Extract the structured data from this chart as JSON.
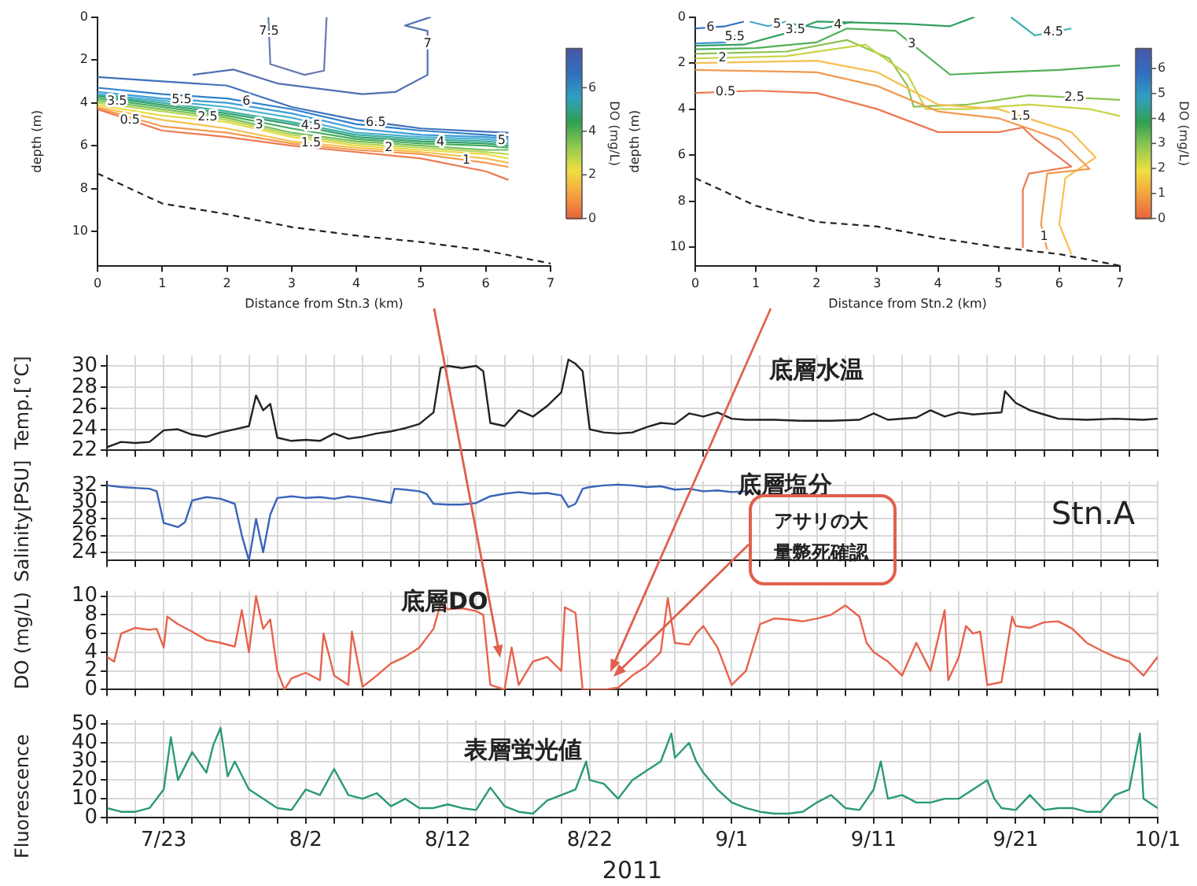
{
  "chart_data": [
    {
      "type": "line",
      "xlabel": "Distance from Stn.3 (km)",
      "ylabel": "depth (m)",
      "clabel": "DO (mg/L)",
      "clim": [
        0,
        7.8
      ],
      "cticks": [
        0,
        2,
        4,
        6
      ],
      "xlim": [
        0,
        7
      ],
      "xticks": [
        0,
        1,
        2,
        3,
        4,
        5,
        6,
        7
      ],
      "ylim": [
        11.6,
        0
      ],
      "yticks": [
        0,
        2,
        4,
        6,
        8,
        10
      ],
      "marker": "none",
      "series": [
        {
          "name": "0.5",
          "color": "#ec7a52",
          "x": [
            0,
            1,
            2,
            3,
            4,
            5,
            6,
            6.35
          ],
          "values": [
            4.3,
            5.3,
            5.6,
            6.0,
            6.3,
            6.6,
            7.2,
            7.6
          ]
        },
        {
          "name": "1",
          "color": "#f29a50",
          "x": [
            0,
            1,
            2,
            3,
            4,
            5,
            6,
            6.35
          ],
          "values": [
            4.25,
            5.1,
            5.4,
            5.9,
            6.2,
            6.4,
            6.8,
            7.0
          ]
        },
        {
          "name": "1.5",
          "color": "#f6c050",
          "x": [
            0,
            1,
            2,
            3,
            4,
            5,
            6,
            6.35
          ],
          "values": [
            4.2,
            4.8,
            5.2,
            5.8,
            6.1,
            6.3,
            6.6,
            6.8
          ]
        },
        {
          "name": "2",
          "color": "#e8dc48",
          "x": [
            0,
            1,
            2,
            3,
            4,
            5,
            6,
            6.35
          ],
          "values": [
            4.1,
            4.6,
            4.9,
            5.6,
            6.0,
            6.2,
            6.4,
            6.6
          ]
        },
        {
          "name": "2.5",
          "color": "#b8d458",
          "x": [
            0,
            1,
            2,
            3,
            4,
            5,
            6,
            6.35
          ],
          "values": [
            4.0,
            4.4,
            4.8,
            5.5,
            5.9,
            6.1,
            6.3,
            6.4
          ]
        },
        {
          "name": "3",
          "color": "#74c058",
          "x": [
            0,
            1,
            2,
            3,
            4,
            5,
            6,
            6.35
          ],
          "values": [
            3.9,
            4.3,
            4.7,
            5.4,
            5.8,
            6.0,
            6.2,
            6.2
          ]
        },
        {
          "name": "3.5",
          "color": "#44ac5c",
          "x": [
            0,
            1,
            2,
            3,
            4,
            5,
            6,
            6.35
          ],
          "values": [
            3.8,
            4.2,
            4.6,
            5.2,
            5.7,
            5.9,
            6.0,
            6.1
          ]
        },
        {
          "name": "4",
          "color": "#34a070",
          "x": [
            0,
            1,
            2,
            3,
            4,
            5,
            6,
            6.35
          ],
          "values": [
            3.7,
            4.1,
            4.5,
            5.0,
            5.6,
            5.8,
            5.9,
            6.0
          ]
        },
        {
          "name": "4.5",
          "color": "#3eb0a0",
          "x": [
            0,
            1,
            2,
            3,
            4,
            5,
            6,
            6.35
          ],
          "values": [
            3.65,
            4.0,
            4.4,
            4.9,
            5.5,
            5.7,
            5.8,
            5.9
          ]
        },
        {
          "name": "5",
          "color": "#4cb0d0",
          "x": [
            0,
            1,
            2,
            3,
            4,
            5,
            6,
            6.35
          ],
          "values": [
            3.6,
            3.9,
            4.2,
            4.7,
            5.4,
            5.6,
            5.7,
            5.8
          ]
        },
        {
          "name": "5.5",
          "color": "#3e9ed8",
          "x": [
            0,
            1,
            2,
            3,
            4,
            5,
            6,
            6.35
          ],
          "values": [
            3.5,
            3.8,
            4.0,
            4.5,
            5.2,
            5.5,
            5.6,
            5.7
          ]
        },
        {
          "name": "6",
          "color": "#3080c8",
          "x": [
            0,
            1,
            2,
            3,
            4,
            5,
            6,
            6.35
          ],
          "values": [
            3.3,
            3.6,
            3.8,
            4.3,
            5.0,
            5.3,
            5.5,
            5.6
          ]
        },
        {
          "name": "6.5",
          "color": "#4070b8",
          "x": [
            0,
            1,
            2,
            3,
            4,
            5,
            6,
            6.35
          ],
          "values": [
            2.8,
            3.0,
            3.2,
            4.2,
            4.8,
            5.2,
            5.35,
            5.4
          ]
        },
        {
          "name": "7",
          "color": "#5070b0",
          "x": [
            1.47,
            2.1,
            2.78,
            4.09,
            4.6,
            5.1,
            5.1,
            4.75,
            5.15
          ],
          "values": [
            2.7,
            2.45,
            3.1,
            3.6,
            3.5,
            2.7,
            0.65,
            0.4,
            0
          ]
        },
        {
          "name": "7.5",
          "color": "#6878b0",
          "x": [
            2.64,
            2.67,
            3.2,
            3.5,
            3.54
          ],
          "values": [
            0,
            2.2,
            2.7,
            2.5,
            0
          ]
        },
        {
          "color": "#222222",
          "line_style": "dashed",
          "x": [
            0,
            1,
            2,
            3,
            4,
            5,
            6,
            7
          ],
          "values": [
            7.3,
            8.7,
            9.2,
            9.8,
            10.2,
            10.5,
            10.9,
            11.5
          ]
        }
      ]
    },
    {
      "type": "line",
      "xlabel": "Distance from Stn.2 (km)",
      "ylabel": "depth (m)",
      "clabel": "DO (mg/L)",
      "clim": [
        0,
        6.8
      ],
      "cticks": [
        0,
        1,
        2,
        3,
        4,
        5,
        6
      ],
      "xlim": [
        0,
        7
      ],
      "xticks": [
        0,
        1,
        2,
        3,
        4,
        5,
        6,
        7
      ],
      "ylim": [
        10.8,
        0
      ],
      "yticks": [
        0,
        2,
        4,
        6,
        8,
        10
      ],
      "marker": "none",
      "series": [
        {
          "name": "0.5",
          "color": "#ec7a52",
          "x": [
            0,
            1,
            2,
            3,
            4,
            5,
            5.4,
            5.6,
            6.2,
            5.5,
            5.4,
            5.4
          ],
          "values": [
            3.3,
            3.2,
            3.3,
            4.0,
            5.0,
            5.0,
            4.8,
            5.3,
            6.5,
            6.8,
            7.5,
            10.0
          ]
        },
        {
          "name": "1",
          "color": "#f29a50",
          "x": [
            0,
            2,
            3,
            4,
            5,
            6,
            6.5,
            5.8,
            5.7,
            5.8
          ],
          "values": [
            2.3,
            2.4,
            3.0,
            4.1,
            4.4,
            5.3,
            6.6,
            6.8,
            9.0,
            10.1
          ]
        },
        {
          "name": "1.5",
          "color": "#f6c050",
          "x": [
            0,
            2,
            3,
            4,
            5,
            6.2,
            6.6,
            6.1,
            6.0,
            6.2
          ],
          "values": [
            2.0,
            1.9,
            2.4,
            3.8,
            4.0,
            5.0,
            6.1,
            7.0,
            9.0,
            10.3
          ]
        },
        {
          "name": "2",
          "color": "#c8d448",
          "x": [
            0,
            1.5,
            2.8,
            3.5,
            3.8,
            4.5,
            5.5,
            6.5,
            7
          ],
          "values": [
            1.8,
            1.7,
            1.2,
            2.5,
            4.0,
            4.0,
            3.8,
            4.0,
            4.3
          ]
        },
        {
          "name": "2.5",
          "color": "#8cc450",
          "x": [
            0,
            1.5,
            2.5,
            3.2,
            3.5,
            3.6,
            4.5,
            5.5,
            7
          ],
          "values": [
            1.6,
            1.5,
            1.0,
            1.8,
            3.0,
            3.9,
            3.8,
            3.4,
            3.6
          ]
        },
        {
          "name": "3",
          "color": "#50b058",
          "x": [
            0,
            1,
            2,
            2.5,
            3.3,
            4.2,
            5,
            6,
            7
          ],
          "values": [
            1.4,
            1.35,
            1.1,
            0.5,
            0.6,
            2.5,
            2.4,
            2.3,
            2.1
          ]
        },
        {
          "name": "3.5",
          "color": "#34a060",
          "x": [
            0,
            0.8,
            1.5,
            2,
            3.5,
            4.2,
            4.6
          ],
          "values": [
            1.25,
            1.2,
            0.7,
            0.2,
            0.3,
            0.4,
            0
          ]
        },
        {
          "name": "4",
          "color": "#30a080",
          "x": [
            1.6,
            2.1,
            2.6
          ],
          "values": [
            0.3,
            0.5,
            0.2
          ]
        },
        {
          "name": "4.5",
          "color": "#3cb0b0",
          "x": [
            5.2,
            5.6,
            6.2
          ],
          "values": [
            0,
            0.8,
            0.5
          ]
        },
        {
          "name": "5",
          "color": "#44a8d0",
          "x": [
            0.9,
            1.2,
            1.5
          ],
          "values": [
            0.2,
            0.4,
            0.2
          ]
        },
        {
          "name": "5.5",
          "color": "#3890d0",
          "x": [
            0,
            0.5,
            0.8
          ],
          "values": [
            1.15,
            1.1,
            0.6
          ]
        },
        {
          "name": "6",
          "color": "#3070c0",
          "x": [
            0,
            0.5,
            0.8
          ],
          "values": [
            0.5,
            0.4,
            0.2
          ]
        },
        {
          "color": "#222222",
          "line_style": "dashed",
          "x": [
            0,
            1,
            2,
            3,
            4,
            5,
            6,
            7
          ],
          "values": [
            7.0,
            8.2,
            8.9,
            9.1,
            9.6,
            10.0,
            10.3,
            10.8
          ]
        }
      ]
    },
    {
      "type": "line",
      "ylabel": "Temp.[°C]",
      "xlim": [
        "2011-07-19",
        "2011-10-01"
      ],
      "ylim": [
        22,
        31
      ],
      "yticks": [
        22,
        24,
        26,
        28,
        30
      ],
      "grid": true,
      "tick_labels": "y",
      "marker": "none",
      "xticks": [
        {
          "value": "2011-07-19",
          "label": null
        },
        {
          "value": "2011-07-21",
          "label": null
        },
        {
          "value": "2011-07-23",
          "label": null
        },
        {
          "value": "2011-07-25",
          "label": null
        },
        {
          "value": "2011-07-27",
          "label": null
        },
        {
          "value": "2011-07-29",
          "label": null
        },
        {
          "value": "2011-07-31",
          "label": null
        },
        {
          "value": "2011-08-02",
          "label": null
        },
        {
          "value": "2011-08-04",
          "label": null
        },
        {
          "value": "2011-08-06",
          "label": null
        },
        {
          "value": "2011-08-08",
          "label": null
        },
        {
          "value": "2011-08-10",
          "label": null
        },
        {
          "value": "2011-08-12",
          "label": null
        },
        {
          "value": "2011-08-14",
          "label": null
        },
        {
          "value": "2011-08-16",
          "label": null
        },
        {
          "value": "2011-08-18",
          "label": null
        },
        {
          "value": "2011-08-20",
          "label": null
        },
        {
          "value": "2011-08-22",
          "label": null
        },
        {
          "value": "2011-08-24",
          "label": null
        },
        {
          "value": "2011-08-26",
          "label": null
        },
        {
          "value": "2011-08-28",
          "label": null
        },
        {
          "value": "2011-08-30",
          "label": null
        },
        {
          "value": "2011-09-01",
          "label": null
        },
        {
          "value": "2011-09-03",
          "label": null
        },
        {
          "value": "2011-09-05",
          "label": null
        },
        {
          "value": "2011-09-07",
          "label": null
        },
        {
          "value": "2011-09-09",
          "label": null
        },
        {
          "value": "2011-09-11",
          "label": null
        },
        {
          "value": "2011-09-13",
          "label": null
        },
        {
          "value": "2011-09-15",
          "label": null
        },
        {
          "value": "2011-09-17",
          "label": null
        },
        {
          "value": "2011-09-19",
          "label": null
        },
        {
          "value": "2011-09-21",
          "label": null
        },
        {
          "value": "2011-09-23",
          "label": null
        },
        {
          "value": "2011-09-25",
          "label": null
        },
        {
          "value": "2011-09-27",
          "label": null
        },
        {
          "value": "2011-09-29",
          "label": null
        },
        {
          "value": "2011-10-01",
          "label": null
        }
      ],
      "series": [
        {
          "name": "底層水温",
          "color": "#222222",
          "x": [
            "2011-07-19",
            "2011-07-20",
            "2011-07-21",
            "2011-07-22",
            "2011-07-23",
            "2011-07-24",
            "2011-07-25",
            "2011-07-26",
            "2011-07-27",
            "2011-07-28",
            "2011-07-29",
            "2011-07-29T12:00",
            "2011-07-30",
            "2011-07-30T12:00",
            "2011-07-31",
            "2011-08-01",
            "2011-08-02",
            "2011-08-03",
            "2011-08-04",
            "2011-08-05",
            "2011-08-06",
            "2011-08-07",
            "2011-08-08",
            "2011-08-09",
            "2011-08-10",
            "2011-08-11",
            "2011-08-11T12:00",
            "2011-08-12",
            "2011-08-13",
            "2011-08-14",
            "2011-08-14T12:00",
            "2011-08-15",
            "2011-08-16",
            "2011-08-17",
            "2011-08-18",
            "2011-08-19",
            "2011-08-20",
            "2011-08-20T12:00",
            "2011-08-21",
            "2011-08-21T12:00",
            "2011-08-22",
            "2011-08-23",
            "2011-08-24",
            "2011-08-25",
            "2011-08-26",
            "2011-08-27",
            "2011-08-28",
            "2011-08-29",
            "2011-08-30",
            "2011-08-31",
            "2011-09-01",
            "2011-09-02",
            "2011-09-04",
            "2011-09-06",
            "2011-09-08",
            "2011-09-10",
            "2011-09-11",
            "2011-09-12",
            "2011-09-14",
            "2011-09-15",
            "2011-09-16",
            "2011-09-17",
            "2011-09-18",
            "2011-09-19",
            "2011-09-20",
            "2011-09-20T06:00",
            "2011-09-21",
            "2011-09-22",
            "2011-09-23",
            "2011-09-24",
            "2011-09-26",
            "2011-09-28",
            "2011-09-30",
            "2011-10-01"
          ],
          "values": [
            22.3,
            22.8,
            22.7,
            22.8,
            23.9,
            24.0,
            23.5,
            23.3,
            23.7,
            24.0,
            24.3,
            27.2,
            25.8,
            26.4,
            23.2,
            22.9,
            23.0,
            22.9,
            23.6,
            23.1,
            23.3,
            23.6,
            23.8,
            24.1,
            24.5,
            25.6,
            29.8,
            30.0,
            29.8,
            30.0,
            29.5,
            24.6,
            24.3,
            25.8,
            25.2,
            26.2,
            27.5,
            30.6,
            30.2,
            29.5,
            24.0,
            23.7,
            23.6,
            23.7,
            24.2,
            24.6,
            24.5,
            25.5,
            25.2,
            25.6,
            25.0,
            24.9,
            24.9,
            24.8,
            24.8,
            24.9,
            25.5,
            24.9,
            25.1,
            25.8,
            25.2,
            25.6,
            25.4,
            25.5,
            25.6,
            27.6,
            26.5,
            25.8,
            25.4,
            25.0,
            24.9,
            25.0,
            24.9,
            25.0
          ]
        }
      ]
    },
    {
      "type": "line",
      "ylabel": "Salinity[PSU]",
      "xlim": [
        "2011-07-19",
        "2011-10-01"
      ],
      "ylim": [
        23,
        32.5
      ],
      "yticks": [
        24,
        26,
        28,
        30,
        32
      ],
      "grid": true,
      "tick_labels": "y",
      "marker": "none",
      "xticks": [
        {
          "value": "2011-07-19",
          "label": null
        },
        {
          "value": "2011-07-21",
          "label": null
        },
        {
          "value": "2011-07-23",
          "label": null
        },
        {
          "value": "2011-07-25",
          "label": null
        },
        {
          "value": "2011-07-27",
          "label": null
        },
        {
          "value": "2011-07-29",
          "label": null
        },
        {
          "value": "2011-07-31",
          "label": null
        },
        {
          "value": "2011-08-02",
          "label": null
        },
        {
          "value": "2011-08-04",
          "label": null
        },
        {
          "value": "2011-08-06",
          "label": null
        },
        {
          "value": "2011-08-08",
          "label": null
        },
        {
          "value": "2011-08-10",
          "label": null
        },
        {
          "value": "2011-08-12",
          "label": null
        },
        {
          "value": "2011-08-14",
          "label": null
        },
        {
          "value": "2011-08-16",
          "label": null
        },
        {
          "value": "2011-08-18",
          "label": null
        },
        {
          "value": "2011-08-20",
          "label": null
        },
        {
          "value": "2011-08-22",
          "label": null
        },
        {
          "value": "2011-08-24",
          "label": null
        },
        {
          "value": "2011-08-26",
          "label": null
        },
        {
          "value": "2011-08-28",
          "label": null
        },
        {
          "value": "2011-08-30",
          "label": null
        },
        {
          "value": "2011-09-01",
          "label": null
        },
        {
          "value": "2011-09-03",
          "label": null
        },
        {
          "value": "2011-09-05",
          "label": null
        },
        {
          "value": "2011-09-07",
          "label": null
        },
        {
          "value": "2011-09-09",
          "label": null
        },
        {
          "value": "2011-09-11",
          "label": null
        },
        {
          "value": "2011-09-13",
          "label": null
        },
        {
          "value": "2011-09-15",
          "label": null
        },
        {
          "value": "2011-09-17",
          "label": null
        },
        {
          "value": "2011-09-19",
          "label": null
        },
        {
          "value": "2011-09-21",
          "label": null
        },
        {
          "value": "2011-09-23",
          "label": null
        },
        {
          "value": "2011-09-25",
          "label": null
        },
        {
          "value": "2011-09-27",
          "label": null
        },
        {
          "value": "2011-09-29",
          "label": null
        },
        {
          "value": "2011-10-01",
          "label": null
        }
      ],
      "annotations": [
        "Stn.A",
        "アサリの大量斃死確認"
      ],
      "series": [
        {
          "name": "底層塩分",
          "color": "#3a64b8",
          "x": [
            "2011-07-19",
            "2011-07-20",
            "2011-07-21",
            "2011-07-22",
            "2011-07-22T12:00",
            "2011-07-23",
            "2011-07-24",
            "2011-07-24T12:00",
            "2011-07-25",
            "2011-07-26",
            "2011-07-27",
            "2011-07-28",
            "2011-07-28T12:00",
            "2011-07-29",
            "2011-07-29T12:00",
            "2011-07-30",
            "2011-07-30T12:00",
            "2011-07-31",
            "2011-08-01",
            "2011-08-02",
            "2011-08-03",
            "2011-08-04",
            "2011-08-05",
            "2011-08-06",
            "2011-08-07",
            "2011-08-08",
            "2011-08-08T06:00",
            "2011-08-09",
            "2011-08-10",
            "2011-08-10T12:00",
            "2011-08-11",
            "2011-08-12",
            "2011-08-13",
            "2011-08-14",
            "2011-08-15",
            "2011-08-16",
            "2011-08-17",
            "2011-08-18",
            "2011-08-19",
            "2011-08-20",
            "2011-08-20T12:00",
            "2011-08-21",
            "2011-08-21T12:00",
            "2011-08-22",
            "2011-08-23",
            "2011-08-24",
            "2011-08-25",
            "2011-08-26",
            "2011-08-27",
            "2011-08-28",
            "2011-08-29",
            "2011-08-30",
            "2011-08-31",
            "2011-09-01",
            "2011-09-02"
          ],
          "values": [
            32.0,
            31.8,
            31.7,
            31.6,
            31.3,
            27.5,
            27.0,
            27.6,
            30.2,
            30.6,
            30.4,
            29.8,
            26.0,
            23.0,
            28.0,
            24.0,
            28.5,
            30.5,
            30.7,
            30.5,
            30.6,
            30.4,
            30.7,
            30.5,
            30.2,
            29.9,
            31.6,
            31.5,
            31.3,
            31.0,
            29.8,
            29.7,
            29.7,
            29.9,
            30.7,
            31.0,
            31.2,
            31.0,
            31.1,
            30.8,
            29.4,
            29.8,
            31.6,
            31.8,
            32.0,
            32.1,
            32.0,
            31.8,
            31.9,
            31.5,
            31.6,
            31.3,
            31.4,
            31.2,
            31.3
          ]
        }
      ]
    },
    {
      "type": "line",
      "ylabel": "DO (mg/L)",
      "xlim": [
        "2011-07-19",
        "2011-10-01"
      ],
      "ylim": [
        0,
        10.5
      ],
      "yticks": [
        0,
        2,
        4,
        6,
        8,
        10
      ],
      "grid": true,
      "tick_labels": "y",
      "marker": "none",
      "xticks": [
        {
          "value": "2011-07-19",
          "label": null
        },
        {
          "value": "2011-07-21",
          "label": null
        },
        {
          "value": "2011-07-23",
          "label": null
        },
        {
          "value": "2011-07-25",
          "label": null
        },
        {
          "value": "2011-07-27",
          "label": null
        },
        {
          "value": "2011-07-29",
          "label": null
        },
        {
          "value": "2011-07-31",
          "label": null
        },
        {
          "value": "2011-08-02",
          "label": null
        },
        {
          "value": "2011-08-04",
          "label": null
        },
        {
          "value": "2011-08-06",
          "label": null
        },
        {
          "value": "2011-08-08",
          "label": null
        },
        {
          "value": "2011-08-10",
          "label": null
        },
        {
          "value": "2011-08-12",
          "label": null
        },
        {
          "value": "2011-08-14",
          "label": null
        },
        {
          "value": "2011-08-16",
          "label": null
        },
        {
          "value": "2011-08-18",
          "label": null
        },
        {
          "value": "2011-08-20",
          "label": null
        },
        {
          "value": "2011-08-22",
          "label": null
        },
        {
          "value": "2011-08-24",
          "label": null
        },
        {
          "value": "2011-08-26",
          "label": null
        },
        {
          "value": "2011-08-28",
          "label": null
        },
        {
          "value": "2011-08-30",
          "label": null
        },
        {
          "value": "2011-09-01",
          "label": null
        },
        {
          "value": "2011-09-03",
          "label": null
        },
        {
          "value": "2011-09-05",
          "label": null
        },
        {
          "value": "2011-09-07",
          "label": null
        },
        {
          "value": "2011-09-09",
          "label": null
        },
        {
          "value": "2011-09-11",
          "label": null
        },
        {
          "value": "2011-09-13",
          "label": null
        },
        {
          "value": "2011-09-15",
          "label": null
        },
        {
          "value": "2011-09-17",
          "label": null
        },
        {
          "value": "2011-09-19",
          "label": null
        },
        {
          "value": "2011-09-21",
          "label": null
        },
        {
          "value": "2011-09-23",
          "label": null
        },
        {
          "value": "2011-09-25",
          "label": null
        },
        {
          "value": "2011-09-27",
          "label": null
        },
        {
          "value": "2011-09-29",
          "label": null
        },
        {
          "value": "2011-10-01",
          "label": null
        }
      ],
      "series": [
        {
          "name": "底層DO",
          "color": "#e8624c",
          "x": [
            "2011-07-19",
            "2011-07-19T12:00",
            "2011-07-20",
            "2011-07-21",
            "2011-07-22",
            "2011-07-22T12:00",
            "2011-07-23",
            "2011-07-23T06:00",
            "2011-07-24",
            "2011-07-25",
            "2011-07-26",
            "2011-07-27",
            "2011-07-28",
            "2011-07-28T12:00",
            "2011-07-29",
            "2011-07-29T12:00",
            "2011-07-30",
            "2011-07-30T12:00",
            "2011-07-31",
            "2011-07-31T12:00",
            "2011-08-01",
            "2011-08-02",
            "2011-08-03",
            "2011-08-03T06:00",
            "2011-08-04",
            "2011-08-05",
            "2011-08-05T06:00",
            "2011-08-06",
            "2011-08-07",
            "2011-08-08",
            "2011-08-09",
            "2011-08-10",
            "2011-08-11",
            "2011-08-11T12:00",
            "2011-08-12",
            "2011-08-13",
            "2011-08-14",
            "2011-08-14T12:00",
            "2011-08-15",
            "2011-08-16",
            "2011-08-16T12:00",
            "2011-08-17",
            "2011-08-18",
            "2011-08-19",
            "2011-08-20",
            "2011-08-20T06:00",
            "2011-08-21",
            "2011-08-21T12:00",
            "2011-08-22",
            "2011-08-23",
            "2011-08-24",
            "2011-08-25",
            "2011-08-26",
            "2011-08-27",
            "2011-08-27T12:00",
            "2011-08-28",
            "2011-08-29",
            "2011-08-29T12:00",
            "2011-08-30",
            "2011-08-31",
            "2011-09-01",
            "2011-09-02",
            "2011-09-03",
            "2011-09-04",
            "2011-09-05",
            "2011-09-06",
            "2011-09-07",
            "2011-09-08",
            "2011-09-09",
            "2011-09-10",
            "2011-09-10T12:00",
            "2011-09-11",
            "2011-09-12",
            "2011-09-13",
            "2011-09-14",
            "2011-09-15",
            "2011-09-16",
            "2011-09-16T06:00",
            "2011-09-17",
            "2011-09-17T12:00",
            "2011-09-18",
            "2011-09-18T12:00",
            "2011-09-19",
            "2011-09-20",
            "2011-09-20T18:00",
            "2011-09-21",
            "2011-09-22",
            "2011-09-23",
            "2011-09-24",
            "2011-09-25",
            "2011-09-26",
            "2011-09-27",
            "2011-09-28",
            "2011-09-29",
            "2011-09-30",
            "2011-10-01"
          ],
          "values": [
            3.5,
            3.0,
            6.0,
            6.6,
            6.4,
            6.5,
            4.5,
            7.8,
            7.0,
            6.2,
            5.3,
            5.0,
            4.6,
            8.5,
            4.0,
            10.0,
            6.5,
            7.5,
            2.0,
            0.0,
            1.2,
            1.8,
            1.0,
            6.0,
            1.5,
            0.5,
            6.2,
            0.3,
            1.5,
            2.8,
            3.5,
            4.5,
            6.5,
            9.2,
            8.6,
            8.7,
            8.4,
            8.0,
            0.5,
            0.0,
            4.5,
            0.5,
            3.0,
            3.5,
            2.0,
            8.8,
            8.2,
            0.0,
            0.0,
            0.0,
            0.2,
            1.5,
            2.5,
            4.0,
            9.8,
            5.0,
            4.8,
            6.0,
            6.8,
            4.5,
            0.5,
            2.0,
            7.0,
            7.6,
            7.5,
            7.3,
            7.6,
            8.0,
            9.0,
            7.8,
            5.0,
            4.0,
            3.0,
            1.5,
            5.0,
            2.0,
            8.5,
            1.0,
            3.5,
            6.8,
            6.0,
            6.2,
            0.5,
            0.8,
            7.8,
            6.8,
            6.6,
            7.2,
            7.3,
            6.5,
            5.0,
            4.2,
            3.5,
            3.0,
            1.5,
            3.5
          ]
        }
      ]
    },
    {
      "type": "line",
      "ylabel": "Fluorescence",
      "xlabel": "2011",
      "xlim": [
        "2011-07-19",
        "2011-10-01"
      ],
      "ylim": [
        0,
        52
      ],
      "yticks": [
        0,
        10,
        20,
        30,
        40,
        50
      ],
      "grid": true,
      "marker": "none",
      "xticks": [
        {
          "value": "2011-07-19",
          "label": null
        },
        {
          "value": "2011-07-21",
          "label": null
        },
        {
          "value": "2011-07-23",
          "label": "7/23"
        },
        {
          "value": "2011-07-25",
          "label": null
        },
        {
          "value": "2011-07-27",
          "label": null
        },
        {
          "value": "2011-07-29",
          "label": null
        },
        {
          "value": "2011-07-31",
          "label": null
        },
        {
          "value": "2011-08-02",
          "label": "8/2"
        },
        {
          "value": "2011-08-04",
          "label": null
        },
        {
          "value": "2011-08-06",
          "label": null
        },
        {
          "value": "2011-08-08",
          "label": null
        },
        {
          "value": "2011-08-10",
          "label": null
        },
        {
          "value": "2011-08-12",
          "label": "8/12"
        },
        {
          "value": "2011-08-14",
          "label": null
        },
        {
          "value": "2011-08-16",
          "label": null
        },
        {
          "value": "2011-08-18",
          "label": null
        },
        {
          "value": "2011-08-20",
          "label": null
        },
        {
          "value": "2011-08-22",
          "label": "8/22"
        },
        {
          "value": "2011-08-24",
          "label": null
        },
        {
          "value": "2011-08-26",
          "label": null
        },
        {
          "value": "2011-08-28",
          "label": null
        },
        {
          "value": "2011-08-30",
          "label": null
        },
        {
          "value": "2011-09-01",
          "label": "9/1"
        },
        {
          "value": "2011-09-03",
          "label": null
        },
        {
          "value": "2011-09-05",
          "label": null
        },
        {
          "value": "2011-09-07",
          "label": null
        },
        {
          "value": "2011-09-09",
          "label": null
        },
        {
          "value": "2011-09-11",
          "label": "9/11"
        },
        {
          "value": "2011-09-13",
          "label": null
        },
        {
          "value": "2011-09-15",
          "label": null
        },
        {
          "value": "2011-09-17",
          "label": null
        },
        {
          "value": "2011-09-19",
          "label": null
        },
        {
          "value": "2011-09-21",
          "label": "9/21"
        },
        {
          "value": "2011-09-23",
          "label": null
        },
        {
          "value": "2011-09-25",
          "label": null
        },
        {
          "value": "2011-09-27",
          "label": null
        },
        {
          "value": "2011-09-29",
          "label": null
        },
        {
          "value": "2011-10-01",
          "label": "10/1"
        }
      ],
      "series": [
        {
          "name": "表層蛍光値",
          "color": "#2a9a70",
          "x": [
            "2011-07-19",
            "2011-07-20",
            "2011-07-21",
            "2011-07-22",
            "2011-07-23",
            "2011-07-23T12:00",
            "2011-07-24",
            "2011-07-25",
            "2011-07-26",
            "2011-07-26T12:00",
            "2011-07-27",
            "2011-07-27T12:00",
            "2011-07-28",
            "2011-07-29",
            "2011-07-30",
            "2011-07-31",
            "2011-08-01",
            "2011-08-02",
            "2011-08-03",
            "2011-08-04",
            "2011-08-05",
            "2011-08-06",
            "2011-08-07",
            "2011-08-08",
            "2011-08-09",
            "2011-08-10",
            "2011-08-11",
            "2011-08-12",
            "2011-08-13",
            "2011-08-14",
            "2011-08-15",
            "2011-08-16",
            "2011-08-17",
            "2011-08-18",
            "2011-08-19",
            "2011-08-20",
            "2011-08-21",
            "2011-08-21T18:00",
            "2011-08-22",
            "2011-08-23",
            "2011-08-24",
            "2011-08-25",
            "2011-08-26",
            "2011-08-27",
            "2011-08-27T18:00",
            "2011-08-28",
            "2011-08-29",
            "2011-08-29T12:00",
            "2011-08-30",
            "2011-08-31",
            "2011-09-01",
            "2011-09-02",
            "2011-09-03",
            "2011-09-04",
            "2011-09-05",
            "2011-09-06",
            "2011-09-07",
            "2011-09-08",
            "2011-09-09",
            "2011-09-10",
            "2011-09-11",
            "2011-09-11T12:00",
            "2011-09-12",
            "2011-09-13",
            "2011-09-14",
            "2011-09-15",
            "2011-09-16",
            "2011-09-17",
            "2011-09-18",
            "2011-09-19",
            "2011-09-19T12:00",
            "2011-09-20",
            "2011-09-21",
            "2011-09-22",
            "2011-09-23",
            "2011-09-24",
            "2011-09-25",
            "2011-09-26",
            "2011-09-27",
            "2011-09-28",
            "2011-09-29",
            "2011-09-29T18:00",
            "2011-09-30",
            "2011-10-01"
          ],
          "values": [
            5,
            3,
            3,
            5,
            15,
            43,
            20,
            35,
            24,
            39,
            48,
            22,
            30,
            15,
            10,
            5,
            4,
            15,
            12,
            26,
            12,
            10,
            13,
            6,
            10,
            5,
            5,
            7,
            5,
            4,
            16,
            6,
            3,
            2,
            9,
            12,
            15,
            30,
            20,
            18,
            10,
            20,
            25,
            30,
            45,
            32,
            40,
            30,
            24,
            15,
            8,
            5,
            3,
            2,
            2,
            3,
            8,
            12,
            5,
            4,
            15,
            30,
            10,
            12,
            8,
            8,
            10,
            10,
            15,
            20,
            10,
            5,
            4,
            12,
            4,
            5,
            5,
            3,
            3,
            12,
            15,
            45,
            10,
            5
          ]
        }
      ]
    }
  ]
}
